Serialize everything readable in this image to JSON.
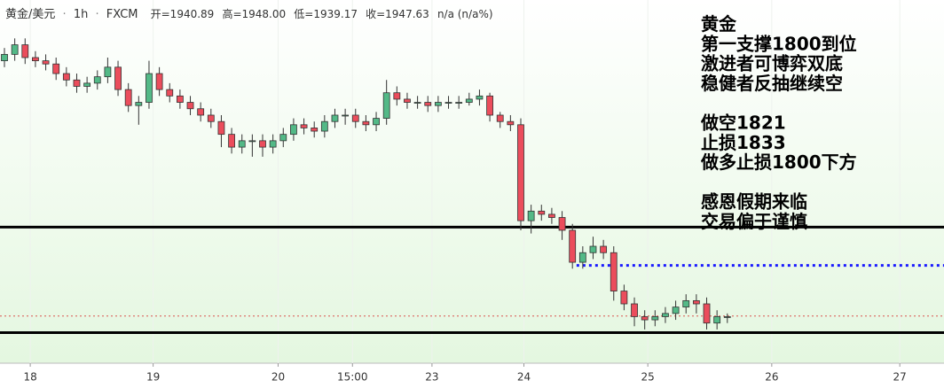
{
  "chart_data": {
    "type": "candlestick",
    "header": {
      "symbol": "黄金/美元",
      "interval": "1h",
      "source": "FXCM",
      "open_label": "开=1940.89",
      "high_label": "高=1948.00",
      "low_label": "低=1939.17",
      "close_label": "收=1947.63",
      "change_label": "n/a (n/a%)"
    },
    "annotation": [
      "黄金",
      "第一支撑1800到位",
      "激进者可博弈双底",
      "稳健者反抽继续空",
      "做空1821",
      "止损1833",
      "做多止损1800下方",
      "感恩假期来临",
      "交易偏于谨慎"
    ],
    "x": [
      0,
      1,
      2,
      3,
      4,
      5,
      6,
      7,
      8,
      9,
      10,
      11,
      12,
      13,
      14,
      15,
      16,
      17,
      18,
      19,
      20,
      21,
      22,
      23,
      24,
      25,
      26,
      27,
      28,
      29,
      30,
      31,
      32,
      33,
      34,
      35,
      36,
      37,
      38,
      39,
      40,
      41,
      42,
      43,
      44,
      45,
      46,
      47,
      48,
      49,
      50,
      51,
      52,
      53,
      54,
      55,
      56,
      57,
      58,
      59,
      60,
      61,
      62,
      63,
      64,
      65,
      66,
      67,
      68,
      69,
      70
    ],
    "open": [
      1885,
      1887,
      1890,
      1886,
      1885,
      1884,
      1881,
      1879,
      1877,
      1878,
      1880,
      1883,
      1876,
      1871,
      1872,
      1881,
      1876,
      1874,
      1872,
      1870,
      1868,
      1866,
      1862,
      1858,
      1860,
      1860,
      1858,
      1860,
      1862,
      1865,
      1864,
      1863,
      1866,
      1868,
      1868,
      1866,
      1865,
      1867,
      1875,
      1873,
      1872,
      1872,
      1871,
      1872,
      1872,
      1872,
      1873,
      1874,
      1868,
      1866,
      1865,
      1835,
      1838,
      1837,
      1836,
      1832,
      1822,
      1825,
      1827,
      1825,
      1813,
      1809,
      1805,
      1804,
      1805,
      1806,
      1808,
      1810,
      1809,
      1803,
      1805
    ],
    "high": [
      1889,
      1892,
      1892,
      1888,
      1887,
      1886,
      1883,
      1881,
      1880,
      1882,
      1886,
      1885,
      1878,
      1874,
      1885,
      1883,
      1878,
      1876,
      1874,
      1872,
      1870,
      1868,
      1864,
      1862,
      1862,
      1862,
      1862,
      1864,
      1867,
      1867,
      1866,
      1868,
      1870,
      1870,
      1870,
      1868,
      1869,
      1879,
      1877,
      1875,
      1874,
      1874,
      1874,
      1874,
      1874,
      1875,
      1876,
      1875,
      1869,
      1868,
      1867,
      1840,
      1840,
      1839,
      1838,
      1834,
      1827,
      1830,
      1829,
      1827,
      1815,
      1811,
      1807,
      1807,
      1808,
      1810,
      1812,
      1812,
      1811,
      1807,
      1806
    ],
    "low": [
      1883,
      1885,
      1884,
      1883,
      1882,
      1879,
      1877,
      1875,
      1875,
      1876,
      1878,
      1874,
      1869,
      1865,
      1870,
      1874,
      1872,
      1870,
      1868,
      1866,
      1864,
      1858,
      1856,
      1856,
      1855,
      1855,
      1856,
      1858,
      1860,
      1862,
      1861,
      1861,
      1864,
      1865,
      1864,
      1863,
      1863,
      1865,
      1871,
      1870,
      1870,
      1869,
      1869,
      1870,
      1870,
      1871,
      1871,
      1866,
      1864,
      1863,
      1832,
      1831,
      1835,
      1834,
      1829,
      1820,
      1820,
      1823,
      1823,
      1810,
      1807,
      1802,
      1801,
      1802,
      1803,
      1804,
      1806,
      1806,
      1801,
      1801,
      1803
    ],
    "close": [
      1887,
      1890,
      1886,
      1885,
      1884,
      1881,
      1879,
      1877,
      1878,
      1880,
      1883,
      1876,
      1871,
      1872,
      1881,
      1876,
      1874,
      1872,
      1870,
      1868,
      1866,
      1862,
      1858,
      1860,
      1860,
      1858,
      1860,
      1862,
      1865,
      1864,
      1863,
      1866,
      1868,
      1868,
      1866,
      1865,
      1867,
      1875,
      1873,
      1872,
      1872,
      1871,
      1872,
      1872,
      1872,
      1873,
      1874,
      1868,
      1866,
      1865,
      1835,
      1838,
      1837,
      1836,
      1832,
      1822,
      1825,
      1827,
      1825,
      1813,
      1809,
      1805,
      1804,
      1805,
      1806,
      1808,
      1810,
      1809,
      1803,
      1805,
      1805
    ],
    "up_color": "#53b987",
    "down_color": "#eb4d5c",
    "xlim": [
      -0.43,
      90.98
    ],
    "ylim": [
      1791,
      1904
    ],
    "xticks": [
      {
        "value": 2.5,
        "label": "18"
      },
      {
        "value": 14.4,
        "label": "19"
      },
      {
        "value": 26.5,
        "label": "20"
      },
      {
        "value": 33.7,
        "label": "15:00"
      },
      {
        "value": 41.4,
        "label": "23"
      },
      {
        "value": 50.3,
        "label": "24"
      },
      {
        "value": 62.3,
        "label": "25"
      },
      {
        "value": 74.3,
        "label": "26"
      },
      {
        "value": 86.7,
        "label": "27"
      }
    ],
    "hlines": [
      {
        "value": 1833,
        "color": "#000000",
        "style": "solid"
      },
      {
        "value": 1800,
        "color": "#000000",
        "style": "solid"
      },
      {
        "value": 1821,
        "color": "#1a1aff",
        "style": "dotted",
        "x_start": 55.4
      },
      {
        "value": 1805.2,
        "color": "#d9534f",
        "style": "dotted"
      }
    ]
  }
}
